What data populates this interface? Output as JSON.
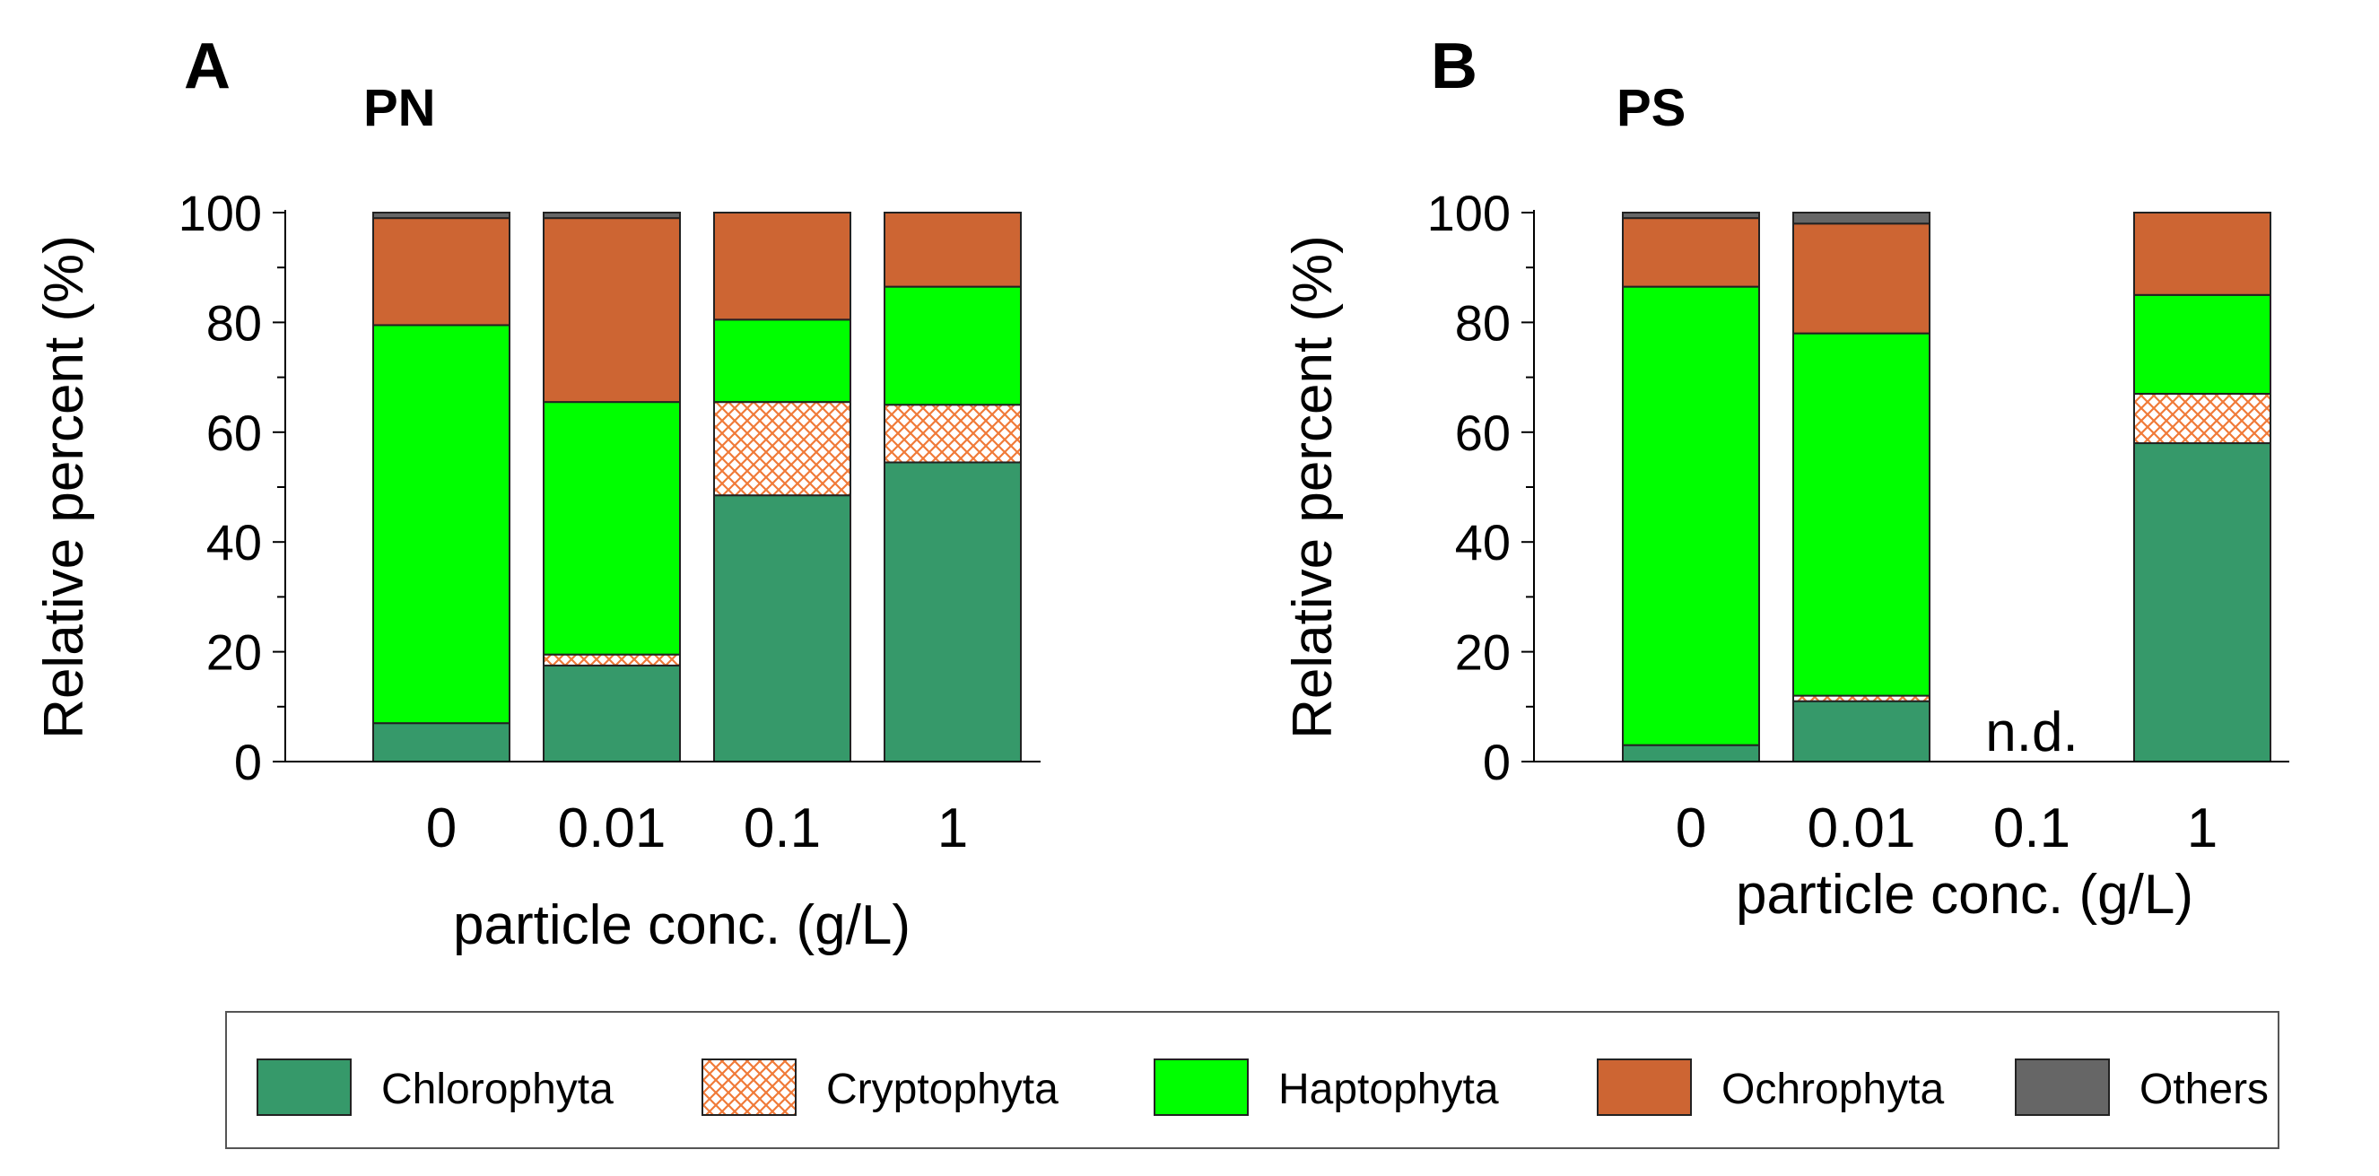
{
  "legend": {
    "placement": "bottom",
    "entries": [
      {
        "name": "Chlorophyta",
        "color": "#36996a",
        "pattern": "solid"
      },
      {
        "name": "Cryptophyta",
        "color": "#f07a38",
        "pattern": "crosshatch"
      },
      {
        "name": "Haptophyta",
        "color": "#00ff00",
        "pattern": "solid"
      },
      {
        "name": "Ochrophyta",
        "color": "#cd6533",
        "pattern": "solid"
      },
      {
        "name": "Others",
        "color": "#666666",
        "pattern": "solid"
      }
    ]
  },
  "chart_data": [
    {
      "type": "bar",
      "stacked": true,
      "panel_letter": "A",
      "title": "PN",
      "xlabel": "particle conc. (g/L)",
      "ylabel": "Relative percent (%)",
      "ylim": [
        0,
        100
      ],
      "yticks": [
        0,
        20,
        40,
        60,
        80,
        100
      ],
      "grid": false,
      "categories": [
        "0",
        "0.01",
        "0.1",
        "1"
      ],
      "series": [
        {
          "name": "Chlorophyta",
          "values": [
            7,
            17.5,
            48.5,
            54.5
          ]
        },
        {
          "name": "Cryptophyta",
          "values": [
            0,
            2,
            17,
            10.5
          ]
        },
        {
          "name": "Haptophyta",
          "values": [
            72.5,
            46,
            15,
            21.5
          ]
        },
        {
          "name": "Ochrophyta",
          "values": [
            19.5,
            33.5,
            19.5,
            13.5
          ]
        },
        {
          "name": "Others",
          "values": [
            1,
            1,
            0,
            0
          ]
        }
      ],
      "annotations": []
    },
    {
      "type": "bar",
      "stacked": true,
      "panel_letter": "B",
      "title": "PS",
      "xlabel": "particle conc. (g/L)",
      "ylabel": "Relative percent (%)",
      "ylim": [
        0,
        100
      ],
      "yticks": [
        0,
        20,
        40,
        60,
        80,
        100
      ],
      "grid": false,
      "categories": [
        "0",
        "0.01",
        "0.1",
        "1"
      ],
      "series": [
        {
          "name": "Chlorophyta",
          "values": [
            3,
            11,
            null,
            58
          ]
        },
        {
          "name": "Cryptophyta",
          "values": [
            0,
            1,
            null,
            9
          ]
        },
        {
          "name": "Haptophyta",
          "values": [
            83.5,
            66,
            null,
            18
          ]
        },
        {
          "name": "Ochrophyta",
          "values": [
            12.5,
            20,
            null,
            15
          ]
        },
        {
          "name": "Others",
          "values": [
            1,
            2,
            null,
            0
          ]
        }
      ],
      "annotations": [
        {
          "category": "0.1",
          "text": "n.d."
        }
      ]
    }
  ]
}
